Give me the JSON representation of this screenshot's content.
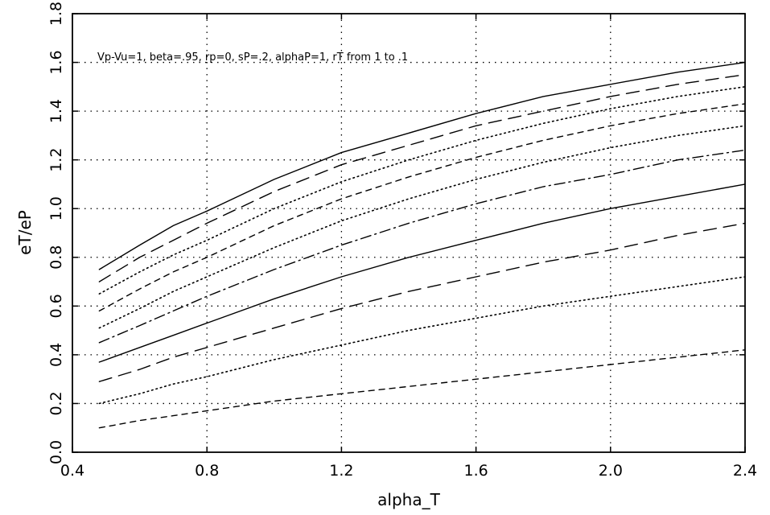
{
  "chart_data": {
    "type": "line",
    "title": "",
    "annotation": "Vp-Vu=1, beta=.95, rp=0, sP=.2, alphaP=1, rT from 1 to .1",
    "xlabel": "alpha_T",
    "ylabel": "eT/eP",
    "xlim": [
      0.4,
      2.4
    ],
    "ylim": [
      0.0,
      1.8
    ],
    "x_ticks": [
      "0.4",
      "0.8",
      "1.2",
      "1.6",
      "2.0",
      "2.4"
    ],
    "y_ticks": [
      "0.0",
      "0.2",
      "0.4",
      "0.6",
      "0.8",
      "1.0",
      "1.2",
      "1.4",
      "1.6",
      "1.8"
    ],
    "grid": true,
    "x": [
      0.48,
      0.6,
      0.7,
      0.8,
      1.0,
      1.2,
      1.4,
      1.6,
      1.8,
      2.0,
      2.2,
      2.4
    ],
    "series": [
      {
        "style": "solid",
        "values": [
          0.75,
          0.85,
          0.93,
          0.99,
          1.12,
          1.23,
          1.31,
          1.39,
          1.46,
          1.51,
          1.56,
          1.6
        ]
      },
      {
        "style": "longdash",
        "values": [
          0.7,
          0.8,
          0.87,
          0.94,
          1.07,
          1.18,
          1.26,
          1.34,
          1.4,
          1.46,
          1.51,
          1.55
        ]
      },
      {
        "style": "dotted",
        "values": [
          0.65,
          0.74,
          0.81,
          0.87,
          1.0,
          1.11,
          1.2,
          1.28,
          1.35,
          1.41,
          1.46,
          1.5
        ]
      },
      {
        "style": "shortdash",
        "values": [
          0.58,
          0.67,
          0.74,
          0.8,
          0.93,
          1.04,
          1.13,
          1.21,
          1.28,
          1.34,
          1.39,
          1.43
        ]
      },
      {
        "style": "dotted",
        "values": [
          0.51,
          0.59,
          0.66,
          0.72,
          0.84,
          0.95,
          1.04,
          1.12,
          1.19,
          1.25,
          1.3,
          1.34
        ]
      },
      {
        "style": "dashdot",
        "values": [
          0.45,
          0.52,
          0.58,
          0.64,
          0.75,
          0.85,
          0.94,
          1.02,
          1.09,
          1.14,
          1.2,
          1.24
        ]
      },
      {
        "style": "solid",
        "values": [
          0.37,
          0.43,
          0.48,
          0.53,
          0.63,
          0.72,
          0.8,
          0.87,
          0.94,
          1.0,
          1.05,
          1.1
        ]
      },
      {
        "style": "longdash",
        "values": [
          0.29,
          0.34,
          0.39,
          0.43,
          0.51,
          0.59,
          0.66,
          0.72,
          0.78,
          0.83,
          0.89,
          0.94
        ]
      },
      {
        "style": "dotted",
        "values": [
          0.2,
          0.24,
          0.28,
          0.31,
          0.38,
          0.44,
          0.5,
          0.55,
          0.6,
          0.64,
          0.68,
          0.72
        ]
      },
      {
        "style": "shortdash",
        "values": [
          0.1,
          0.13,
          0.15,
          0.17,
          0.21,
          0.24,
          0.27,
          0.3,
          0.33,
          0.36,
          0.39,
          0.42
        ]
      }
    ]
  }
}
